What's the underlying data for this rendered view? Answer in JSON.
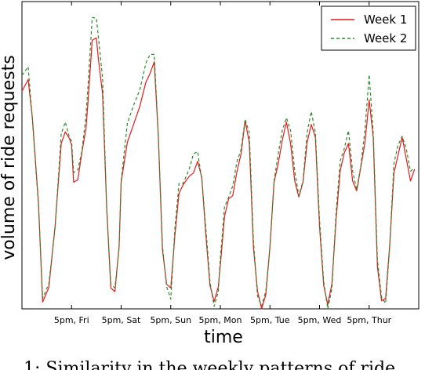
{
  "chart_data": {
    "type": "line",
    "title": "",
    "xlabel": "time",
    "ylabel": "volume of ride requests",
    "grid": false,
    "legend_position": "top-right",
    "x_unit": "hours since 5pm Fri",
    "xlim": [
      -24,
      168
    ],
    "ylim": [
      0,
      1
    ],
    "xticks": [
      0,
      24,
      48,
      72,
      96,
      120,
      144
    ],
    "xtick_labels": [
      "5pm, Fri",
      "5pm, Sat",
      "5pm, Sun",
      "5pm, Mon",
      "5pm, Tue",
      "5pm, Wed",
      "5pm, Thur"
    ],
    "series": [
      {
        "name": "Week 1",
        "color": "#e41a1c",
        "style": "solid",
        "x": [
          -24,
          -21,
          -19,
          -16,
          -14,
          -11,
          -8,
          -5,
          -3,
          -1,
          0,
          1,
          3,
          5,
          7,
          8,
          10,
          12,
          13,
          15,
          17,
          19,
          21,
          23,
          24,
          27,
          30,
          33,
          36,
          38,
          40,
          42,
          44,
          46,
          48,
          50,
          52,
          54,
          57,
          59,
          61,
          63,
          65,
          67,
          69,
          71,
          72,
          74,
          76,
          78,
          80,
          82,
          84,
          86,
          88,
          90,
          92,
          94,
          96,
          98,
          100,
          102,
          104,
          106,
          108,
          110,
          112,
          114,
          116,
          118,
          120,
          122,
          124,
          126,
          128,
          130,
          132,
          134,
          136,
          138,
          140,
          142,
          144,
          146,
          148,
          150,
          152,
          154,
          156,
          158,
          160,
          162,
          164,
          166
        ],
        "y": [
          0.72,
          0.75,
          0.62,
          0.33,
          0.03,
          0.07,
          0.26,
          0.55,
          0.58,
          0.55,
          0.52,
          0.42,
          0.42,
          0.5,
          0.6,
          0.68,
          0.87,
          0.87,
          0.82,
          0.7,
          0.32,
          0.08,
          0.06,
          0.2,
          0.4,
          0.55,
          0.6,
          0.65,
          0.75,
          0.77,
          0.8,
          0.55,
          0.2,
          0.08,
          0.06,
          0.25,
          0.38,
          0.4,
          0.42,
          0.45,
          0.48,
          0.42,
          0.25,
          0.08,
          0.02,
          0.06,
          0.15,
          0.3,
          0.35,
          0.38,
          0.45,
          0.5,
          0.6,
          0.55,
          0.2,
          0.05,
          0.01,
          0.05,
          0.2,
          0.4,
          0.48,
          0.55,
          0.6,
          0.55,
          0.42,
          0.36,
          0.4,
          0.55,
          0.6,
          0.55,
          0.28,
          0.08,
          0.01,
          0.07,
          0.3,
          0.45,
          0.5,
          0.55,
          0.42,
          0.38,
          0.45,
          0.55,
          0.68,
          0.55,
          0.15,
          0.03,
          0.03,
          0.2,
          0.45,
          0.5,
          0.55,
          0.5,
          0.42,
          0.45
        ]
      },
      {
        "name": "Week 2",
        "color": "#2a8a2a",
        "style": "dashed",
        "x": [
          -24,
          -21,
          -19,
          -16,
          -14,
          -11,
          -8,
          -5,
          -3,
          -1,
          0,
          1,
          3,
          5,
          7,
          8,
          10,
          12,
          13,
          15,
          17,
          19,
          21,
          23,
          24,
          27,
          30,
          33,
          36,
          38,
          40,
          42,
          44,
          46,
          48,
          50,
          52,
          54,
          57,
          59,
          61,
          63,
          65,
          67,
          69,
          71,
          72,
          74,
          76,
          78,
          80,
          82,
          84,
          86,
          88,
          90,
          92,
          94,
          96,
          98,
          100,
          102,
          104,
          106,
          108,
          110,
          112,
          114,
          116,
          118,
          120,
          122,
          124,
          126,
          128,
          130,
          132,
          134,
          136,
          138,
          140,
          142,
          144,
          146,
          148,
          150,
          152,
          154,
          156,
          158,
          160,
          162,
          164,
          166
        ],
        "y": [
          0.76,
          0.78,
          0.63,
          0.34,
          0.03,
          0.07,
          0.27,
          0.57,
          0.6,
          0.57,
          0.55,
          0.44,
          0.44,
          0.52,
          0.63,
          0.72,
          0.96,
          0.95,
          0.88,
          0.74,
          0.33,
          0.08,
          0.06,
          0.21,
          0.42,
          0.6,
          0.65,
          0.72,
          0.8,
          0.82,
          0.84,
          0.57,
          0.2,
          0.06,
          0.04,
          0.26,
          0.4,
          0.42,
          0.46,
          0.5,
          0.5,
          0.43,
          0.26,
          0.08,
          0.02,
          0.06,
          0.16,
          0.32,
          0.37,
          0.4,
          0.47,
          0.53,
          0.62,
          0.57,
          0.21,
          0.05,
          0.01,
          0.05,
          0.21,
          0.42,
          0.5,
          0.57,
          0.63,
          0.58,
          0.44,
          0.38,
          0.42,
          0.57,
          0.63,
          0.58,
          0.29,
          0.08,
          0.01,
          0.07,
          0.31,
          0.47,
          0.53,
          0.58,
          0.44,
          0.4,
          0.47,
          0.58,
          0.75,
          0.58,
          0.16,
          0.03,
          0.03,
          0.21,
          0.47,
          0.52,
          0.57,
          0.52,
          0.44,
          0.47
        ]
      }
    ]
  },
  "caption": {
    "text": "1: Similarity in the weekly patterns of ride"
  }
}
